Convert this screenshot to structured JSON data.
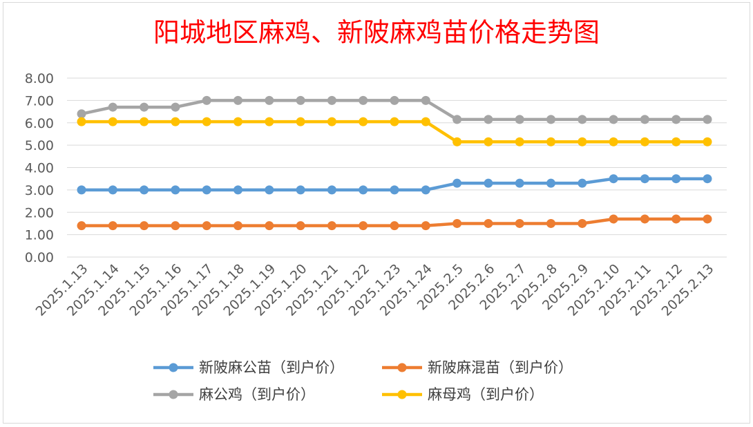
{
  "chart_data": {
    "type": "line",
    "title": "阳城地区麻鸡、新陂麻鸡苗价格走势图",
    "categories": [
      "2025.1.13",
      "2025.1.14",
      "2025.1.15",
      "2025.1.16",
      "2025.1.17",
      "2025.1.18",
      "2025.1.19",
      "2025.1.20",
      "2025.1.21",
      "2025.1.22",
      "2025.1.23",
      "2025.1.24",
      "2025.2.5",
      "2025.2.6",
      "2025.2.7",
      "2025.2.8",
      "2025.2.9",
      "2025.2.10",
      "2025.2.11",
      "2025.2.12",
      "2025.2.13"
    ],
    "ylim": [
      0,
      8
    ],
    "yticks": [
      "0.00",
      "1.00",
      "2.00",
      "3.00",
      "4.00",
      "5.00",
      "6.00",
      "7.00",
      "8.00"
    ],
    "grid": true,
    "legend_position": "bottom",
    "series": [
      {
        "name": "新陂麻公苗（到户价）",
        "color": "#5b9bd5",
        "values": [
          3.0,
          3.0,
          3.0,
          3.0,
          3.0,
          3.0,
          3.0,
          3.0,
          3.0,
          3.0,
          3.0,
          3.0,
          3.3,
          3.3,
          3.3,
          3.3,
          3.3,
          3.5,
          3.5,
          3.5,
          3.5
        ]
      },
      {
        "name": "新陂麻混苗（到户价）",
        "color": "#ed7d31",
        "values": [
          1.4,
          1.4,
          1.4,
          1.4,
          1.4,
          1.4,
          1.4,
          1.4,
          1.4,
          1.4,
          1.4,
          1.4,
          1.5,
          1.5,
          1.5,
          1.5,
          1.5,
          1.7,
          1.7,
          1.7,
          1.7
        ]
      },
      {
        "name": "麻公鸡（到户价）",
        "color": "#a5a5a5",
        "values": [
          6.4,
          6.7,
          6.7,
          6.7,
          7.0,
          7.0,
          7.0,
          7.0,
          7.0,
          7.0,
          7.0,
          7.0,
          6.15,
          6.15,
          6.15,
          6.15,
          6.15,
          6.15,
          6.15,
          6.15,
          6.15
        ]
      },
      {
        "name": "麻母鸡（到户价）",
        "color": "#ffc000",
        "values": [
          6.05,
          6.05,
          6.05,
          6.05,
          6.05,
          6.05,
          6.05,
          6.05,
          6.05,
          6.05,
          6.05,
          6.05,
          5.15,
          5.15,
          5.15,
          5.15,
          5.15,
          5.15,
          5.15,
          5.15,
          5.15
        ]
      }
    ]
  }
}
